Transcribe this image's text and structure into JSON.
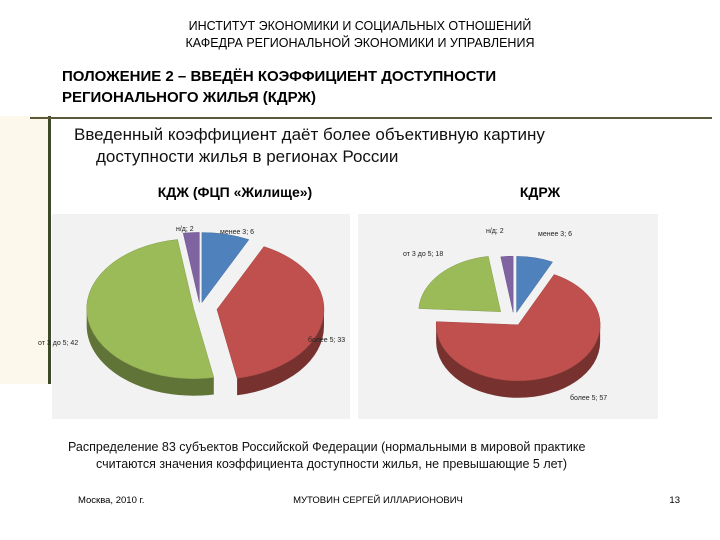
{
  "header": {
    "institute_line1": "ИНСТИТУТ ЭКОНОМИКИ И СОЦИАЛЬНЫХ ОТНОШЕНИЙ",
    "institute_line2": "КАФЕДРА РЕГИОНАЛЬНОЙ ЭКОНОМИКИ И УПРАВЛЕНИЯ"
  },
  "title": {
    "line1": "ПОЛОЖЕНИЕ 2 – ВВЕДЁН КОЭФФИЦИЕНТ ДОСТУПНОСТИ",
    "line2": "РЕГИОНАЛЬНОГО ЖИЛЬЯ (КДРЖ)"
  },
  "intro": {
    "line1": "Введенный коэффициент даёт более объективную картину",
    "line2": "доступности жилья в регионах России"
  },
  "colors": {
    "blue": "#4f81bd",
    "red": "#c0504d",
    "green": "#9bbb59",
    "purple": "#8064a2"
  },
  "chart_data": [
    {
      "type": "pie",
      "title": "КДЖ (ФЦП «Жилище»)",
      "slices": [
        {
          "label": "менее 3; 6",
          "value": 6,
          "color": "#4f81bd"
        },
        {
          "label": "более 5; 33",
          "value": 33,
          "color": "#c0504d"
        },
        {
          "label": "от 3 до 5; 42",
          "value": 42,
          "color": "#9bbb59"
        },
        {
          "label": "н/д; 2",
          "value": 2,
          "color": "#8064a2"
        }
      ]
    },
    {
      "type": "pie",
      "title": "КДРЖ",
      "slices": [
        {
          "label": "менее 3; 6",
          "value": 6,
          "color": "#4f81bd"
        },
        {
          "label": "более 5; 57",
          "value": 57,
          "color": "#c0504d"
        },
        {
          "label": "от 3 до 5; 18",
          "value": 18,
          "color": "#9bbb59"
        },
        {
          "label": "н/д; 2",
          "value": 2,
          "color": "#8064a2"
        }
      ]
    }
  ],
  "caption": {
    "line1": "Распределение 83 субъектов Российской Федерации (нормальными в мировой практике",
    "line2": "считаются значения коэффициента доступности жилья, не превышающие 5 лет)"
  },
  "footer": {
    "place_date": "Москва, 2010 г.",
    "author": "МУТОВИН СЕРГЕЙ ИЛЛАРИОНОВИЧ",
    "page_number": "13"
  }
}
